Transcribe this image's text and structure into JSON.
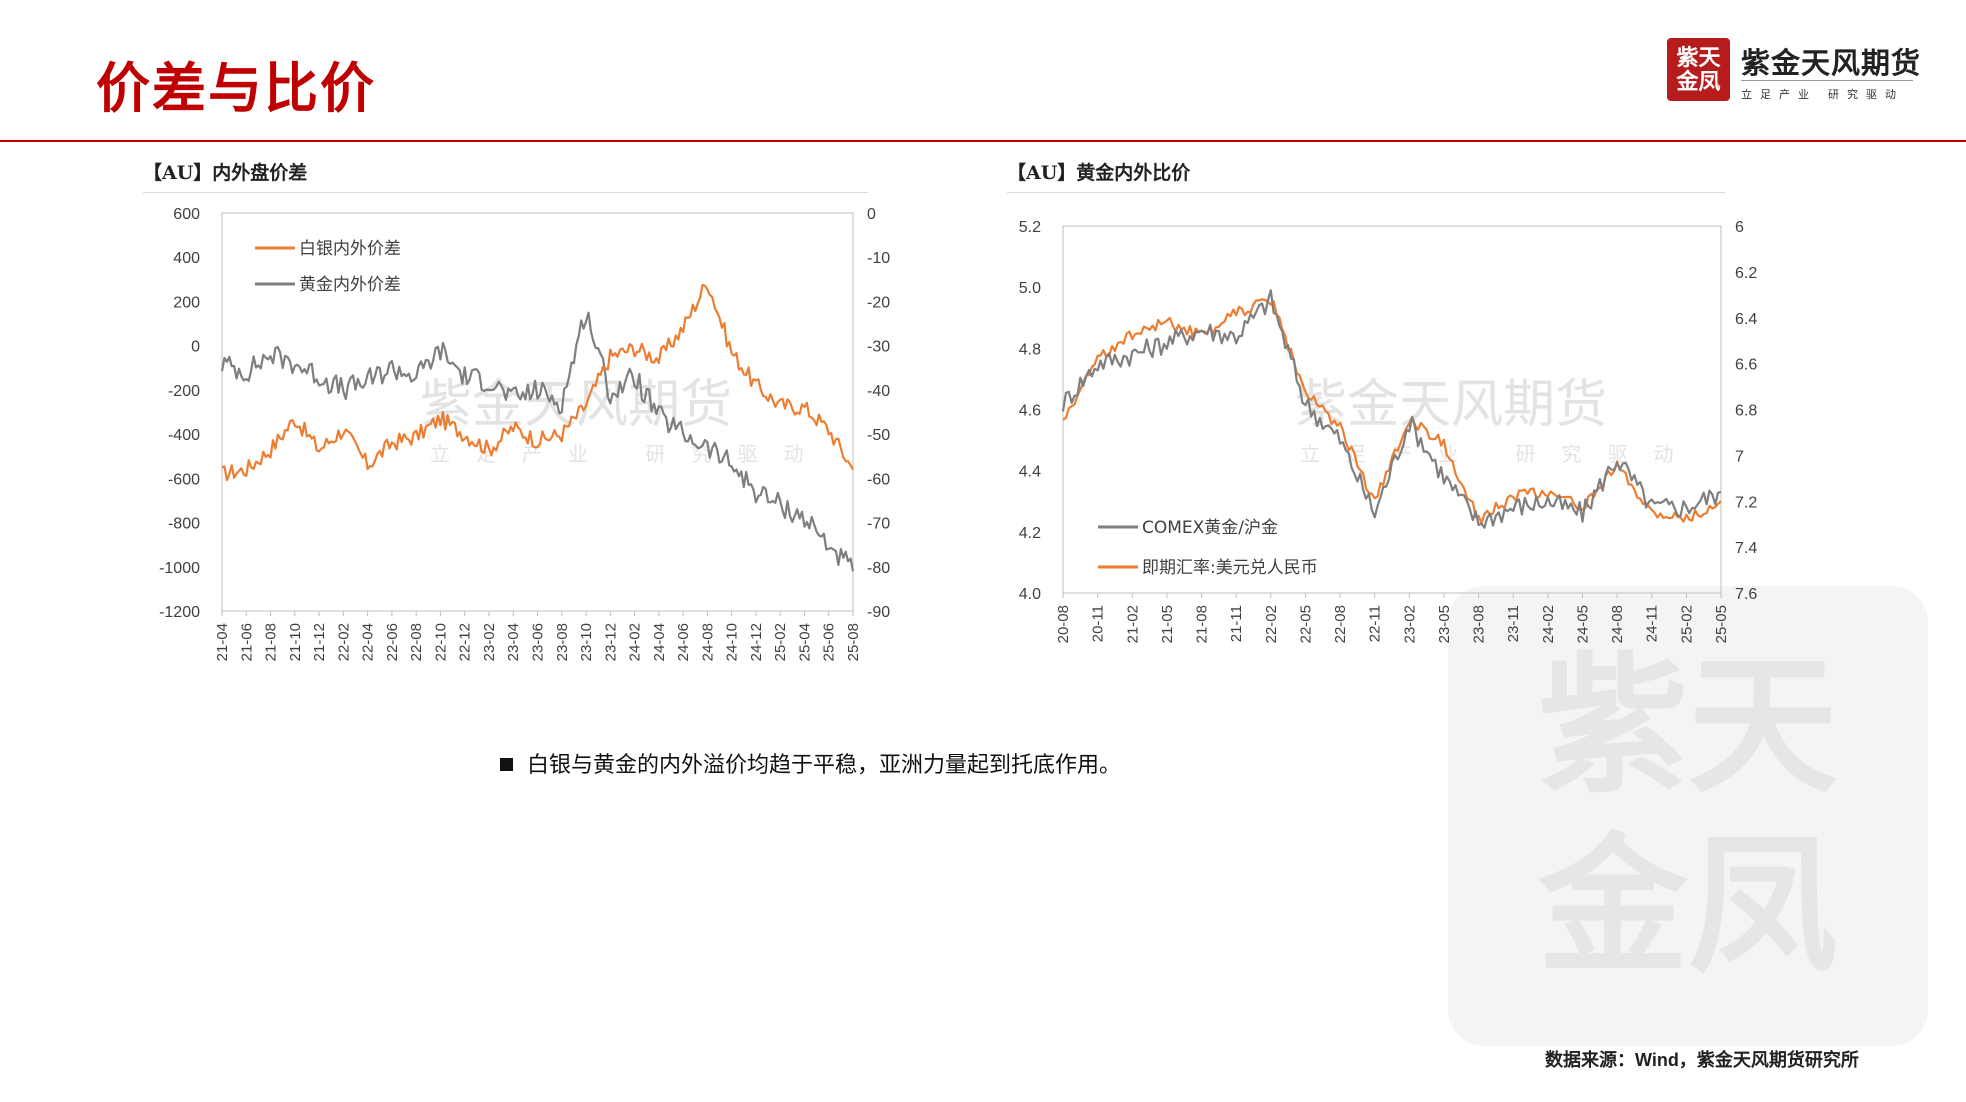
{
  "header": {
    "title": "价差与比价"
  },
  "brand": {
    "seal": "紫天金凤",
    "name": "紫金天风期货",
    "slogan": "立足产业 研究驱动"
  },
  "watermark": {
    "seal": "紫天金凤",
    "name": "紫金天风期货",
    "slogan": "立足产业 研究驱动"
  },
  "note": "白银与黄金的内外溢价均趋于平稳，亚洲力量起到托底作用。",
  "source": "数据来源：Wind，紫金天风期货研究所",
  "colors": {
    "accent": "#c00000",
    "orange": "#ed7d31",
    "gray": "#7f7f7f"
  },
  "chart_data": [
    {
      "type": "line",
      "title": "【AU】内外盘价差",
      "categories": [
        "21-04",
        "21-06",
        "21-08",
        "21-10",
        "21-12",
        "22-02",
        "22-04",
        "22-06",
        "22-08",
        "22-10",
        "22-12",
        "23-02",
        "23-04",
        "23-06",
        "23-08",
        "23-10",
        "23-12",
        "24-02",
        "24-04",
        "24-06",
        "24-08",
        "24-10",
        "24-12",
        "25-02",
        "25-04",
        "25-06",
        "25-08"
      ],
      "y_left": {
        "ylim": [
          -1200,
          600
        ],
        "ticks": [
          "600",
          "400",
          "200",
          "0",
          "-200",
          "-400",
          "-600",
          "-800",
          "-1000",
          "-1200"
        ]
      },
      "y_right": {
        "ylim": [
          -90,
          0
        ],
        "ticks": [
          "0",
          "-10",
          "-20",
          "-30",
          "-40",
          "-50",
          "-60",
          "-70",
          "-80",
          "-90"
        ]
      },
      "legend_position": "top-left",
      "series": [
        {
          "name": "白银内外价差",
          "axis": "left",
          "color": "#ed7d31",
          "values": [
            -580,
            -560,
            -470,
            -330,
            -470,
            -380,
            -540,
            -440,
            -410,
            -330,
            -400,
            -470,
            -370,
            -430,
            -400,
            -270,
            -50,
            -10,
            -60,
            80,
            290,
            -30,
            -180,
            -270,
            -280,
            -380,
            -560
          ]
        },
        {
          "name": "黄金内外价差",
          "axis": "right",
          "color": "#7f7f7f",
          "values": [
            -34,
            -36,
            -32,
            -34,
            -37,
            -40,
            -38,
            -35,
            -37,
            -31,
            -37,
            -38,
            -42,
            -40,
            -43,
            -22,
            -41,
            -37,
            -46,
            -50,
            -53,
            -57,
            -63,
            -66,
            -69,
            -75,
            -81
          ]
        }
      ]
    },
    {
      "type": "line",
      "title": "【AU】黄金内外比价",
      "categories": [
        "20-08",
        "20-11",
        "21-02",
        "21-05",
        "21-08",
        "21-11",
        "22-02",
        "22-05",
        "22-08",
        "22-11",
        "23-02",
        "23-05",
        "23-08",
        "23-11",
        "24-02",
        "24-05",
        "24-08",
        "24-11",
        "25-02",
        "25-05"
      ],
      "y_left": {
        "ylim": [
          4.0,
          5.2
        ],
        "ticks": [
          "5.2",
          "5.0",
          "4.8",
          "4.6",
          "4.4",
          "4.2",
          "4.0"
        ]
      },
      "y_right": {
        "ylim": [
          6.0,
          7.6
        ],
        "inverted": true,
        "ticks": [
          "6",
          "6.2",
          "6.4",
          "6.6",
          "6.8",
          "7",
          "7.2",
          "7.4",
          "7.6"
        ]
      },
      "legend_position": "bottom-left",
      "series": [
        {
          "name": "COMEX黄金/沪金",
          "axis": "left",
          "color": "#7f7f7f",
          "values": [
            4.62,
            4.75,
            4.78,
            4.82,
            4.86,
            4.84,
            4.96,
            4.62,
            4.5,
            4.26,
            4.56,
            4.38,
            4.23,
            4.28,
            4.3,
            4.26,
            4.44,
            4.28,
            4.28,
            4.33
          ]
        },
        {
          "name": "即期汇率:美元兑人民币",
          "axis": "right",
          "color": "#ed7d31",
          "values": [
            6.85,
            6.58,
            6.47,
            6.42,
            6.48,
            6.38,
            6.32,
            6.72,
            6.88,
            7.2,
            6.85,
            6.95,
            7.28,
            7.18,
            7.16,
            7.22,
            7.05,
            7.25,
            7.28,
            7.2
          ]
        }
      ]
    }
  ]
}
